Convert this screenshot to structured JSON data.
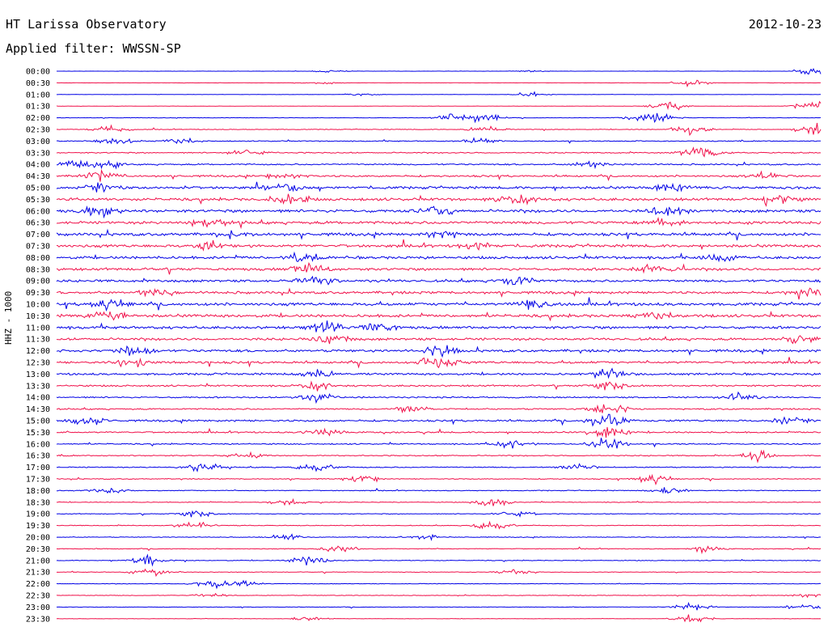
{
  "header": {
    "title": "HT Larissa Observatory",
    "date": "2012-10-23",
    "filter": "Applied filter: WWSSN-SP"
  },
  "chart_data": {
    "type": "line",
    "ylabel": "HHZ - 1000",
    "colors": {
      "even": "#0000e6",
      "odd": "#f0104a"
    },
    "rows": [
      {
        "time": "00:00",
        "level": 0.1,
        "events": [
          [
            0.36,
            0.4
          ],
          [
            0.62,
            0.3
          ],
          [
            0.99,
            1.6
          ]
        ]
      },
      {
        "time": "00:30",
        "level": 0.12,
        "events": [
          [
            0.83,
            0.9
          ],
          [
            0.35,
            0.3
          ]
        ]
      },
      {
        "time": "01:00",
        "level": 0.14,
        "events": [
          [
            0.62,
            0.6
          ],
          [
            0.4,
            0.3
          ]
        ]
      },
      {
        "time": "01:30",
        "level": 0.16,
        "events": [
          [
            0.8,
            1.2
          ],
          [
            0.99,
            1.4
          ]
        ]
      },
      {
        "time": "02:00",
        "level": 0.22,
        "events": [
          [
            0.52,
            1.0
          ],
          [
            0.56,
            1.3
          ],
          [
            0.79,
            1.6
          ],
          [
            0.76,
            0.8
          ]
        ]
      },
      {
        "time": "02:30",
        "level": 0.3,
        "events": [
          [
            0.07,
            1.0
          ],
          [
            0.56,
            0.9
          ],
          [
            0.83,
            1.3
          ],
          [
            0.99,
            1.7
          ]
        ]
      },
      {
        "time": "03:00",
        "level": 0.45,
        "events": [
          [
            0.08,
            1.0
          ],
          [
            0.16,
            1.0
          ],
          [
            0.55,
            1.0
          ]
        ]
      },
      {
        "time": "03:30",
        "level": 0.55,
        "events": [
          [
            0.83,
            1.2
          ],
          [
            0.85,
            1.2
          ],
          [
            0.25,
            0.9
          ]
        ]
      },
      {
        "time": "04:00",
        "level": 0.7,
        "events": [
          [
            0.02,
            1.2
          ],
          [
            0.06,
            1.0
          ],
          [
            0.7,
            0.9
          ]
        ]
      },
      {
        "time": "04:30",
        "level": 0.9,
        "events": [
          [
            0.06,
            1.3
          ],
          [
            0.3,
            1.0
          ],
          [
            0.93,
            1.1
          ]
        ]
      },
      {
        "time": "05:00",
        "level": 1.2,
        "events": [
          [
            0.06,
            1.6
          ],
          [
            0.3,
            1.4
          ],
          [
            0.8,
            1.2
          ]
        ]
      },
      {
        "time": "05:30",
        "level": 1.3,
        "events": [
          [
            0.3,
            1.4
          ],
          [
            0.6,
            1.2
          ],
          [
            0.95,
            1.2
          ]
        ]
      },
      {
        "time": "06:00",
        "level": 1.4,
        "events": [
          [
            0.06,
            1.4
          ],
          [
            0.5,
            1.2
          ],
          [
            0.8,
            1.3
          ]
        ]
      },
      {
        "time": "06:30",
        "level": 1.4,
        "events": [
          [
            0.2,
            1.3
          ],
          [
            0.8,
            1.2
          ]
        ]
      },
      {
        "time": "07:00",
        "level": 1.4,
        "events": [
          [
            0.23,
            1.2
          ],
          [
            0.5,
            1.3
          ]
        ]
      },
      {
        "time": "07:30",
        "level": 1.35,
        "events": [
          [
            0.2,
            1.3
          ],
          [
            0.55,
            1.2
          ]
        ]
      },
      {
        "time": "08:00",
        "level": 1.3,
        "events": [
          [
            0.32,
            1.3
          ],
          [
            0.87,
            1.1
          ]
        ]
      },
      {
        "time": "08:30",
        "level": 1.25,
        "events": [
          [
            0.33,
            1.4
          ],
          [
            0.78,
            1.2
          ]
        ]
      },
      {
        "time": "09:00",
        "level": 1.2,
        "events": [
          [
            0.34,
            1.3
          ],
          [
            0.6,
            1.2
          ]
        ]
      },
      {
        "time": "09:30",
        "level": 1.2,
        "events": [
          [
            0.13,
            1.2
          ],
          [
            0.98,
            1.2
          ]
        ]
      },
      {
        "time": "10:00",
        "level": 1.4,
        "events": [
          [
            0.07,
            1.4
          ],
          [
            0.62,
            1.3
          ]
        ]
      },
      {
        "time": "10:30",
        "level": 1.4,
        "events": [
          [
            0.07,
            1.5
          ],
          [
            0.78,
            1.4
          ]
        ]
      },
      {
        "time": "11:00",
        "level": 1.3,
        "events": [
          [
            0.35,
            1.5
          ],
          [
            0.42,
            1.3
          ]
        ]
      },
      {
        "time": "11:30",
        "level": 1.2,
        "events": [
          [
            0.36,
            1.3
          ],
          [
            0.97,
            1.2
          ]
        ]
      },
      {
        "time": "12:00",
        "level": 1.2,
        "events": [
          [
            0.1,
            1.3
          ],
          [
            0.5,
            1.4
          ]
        ]
      },
      {
        "time": "12:30",
        "level": 1.1,
        "events": [
          [
            0.5,
            1.6
          ],
          [
            0.1,
            1.3
          ]
        ]
      },
      {
        "time": "13:00",
        "level": 1.0,
        "events": [
          [
            0.34,
            1.4
          ],
          [
            0.72,
            1.4
          ]
        ]
      },
      {
        "time": "13:30",
        "level": 0.8,
        "events": [
          [
            0.72,
            1.3
          ],
          [
            0.34,
            1.0
          ]
        ]
      },
      {
        "time": "14:00",
        "level": 0.7,
        "events": [
          [
            0.34,
            1.2
          ],
          [
            0.89,
            1.2
          ]
        ]
      },
      {
        "time": "14:30",
        "level": 0.7,
        "events": [
          [
            0.72,
            2.0
          ],
          [
            0.46,
            1.1
          ]
        ]
      },
      {
        "time": "15:00",
        "level": 0.9,
        "events": [
          [
            0.72,
            2.4
          ],
          [
            0.04,
            1.2
          ],
          [
            0.96,
            1.1
          ]
        ]
      },
      {
        "time": "15:30",
        "level": 0.7,
        "events": [
          [
            0.72,
            1.8
          ],
          [
            0.35,
            1.2
          ]
        ]
      },
      {
        "time": "16:00",
        "level": 0.6,
        "events": [
          [
            0.72,
            1.6
          ],
          [
            0.6,
            1.1
          ]
        ]
      },
      {
        "time": "16:30",
        "level": 0.5,
        "events": [
          [
            0.92,
            1.4
          ],
          [
            0.25,
            0.8
          ]
        ]
      },
      {
        "time": "17:00",
        "level": 0.5,
        "events": [
          [
            0.19,
            1.2
          ],
          [
            0.34,
            1.0
          ],
          [
            0.68,
            0.9
          ]
        ]
      },
      {
        "time": "17:30",
        "level": 0.45,
        "events": [
          [
            0.78,
            1.3
          ],
          [
            0.4,
            1.0
          ]
        ]
      },
      {
        "time": "18:00",
        "level": 0.4,
        "events": [
          [
            0.07,
            0.8
          ],
          [
            0.8,
            0.9
          ]
        ]
      },
      {
        "time": "18:30",
        "level": 0.35,
        "events": [
          [
            0.57,
            1.3
          ],
          [
            0.3,
            0.8
          ]
        ]
      },
      {
        "time": "19:00",
        "level": 0.35,
        "events": [
          [
            0.18,
            1.0
          ],
          [
            0.6,
            0.9
          ]
        ]
      },
      {
        "time": "19:30",
        "level": 0.35,
        "events": [
          [
            0.18,
            1.3
          ],
          [
            0.57,
            1.1
          ]
        ]
      },
      {
        "time": "20:00",
        "level": 0.35,
        "events": [
          [
            0.3,
            1.0
          ],
          [
            0.48,
            0.9
          ]
        ]
      },
      {
        "time": "20:30",
        "level": 0.35,
        "events": [
          [
            0.37,
            1.1
          ],
          [
            0.85,
            0.9
          ]
        ]
      },
      {
        "time": "21:00",
        "level": 0.35,
        "events": [
          [
            0.12,
            1.5
          ],
          [
            0.33,
            1.3
          ]
        ]
      },
      {
        "time": "21:30",
        "level": 0.3,
        "events": [
          [
            0.12,
            1.2
          ],
          [
            0.6,
            0.8
          ]
        ]
      },
      {
        "time": "22:00",
        "level": 0.3,
        "events": [
          [
            0.2,
            1.0
          ],
          [
            0.24,
            0.9
          ]
        ]
      },
      {
        "time": "22:30",
        "level": 0.25,
        "events": [
          [
            0.2,
            0.6
          ],
          [
            0.98,
            0.8
          ]
        ]
      },
      {
        "time": "23:00",
        "level": 0.25,
        "events": [
          [
            0.83,
            1.0
          ],
          [
            0.98,
            0.8
          ]
        ]
      },
      {
        "time": "23:30",
        "level": 0.2,
        "events": [
          [
            0.83,
            1.1
          ],
          [
            0.33,
            0.6
          ]
        ]
      }
    ]
  }
}
